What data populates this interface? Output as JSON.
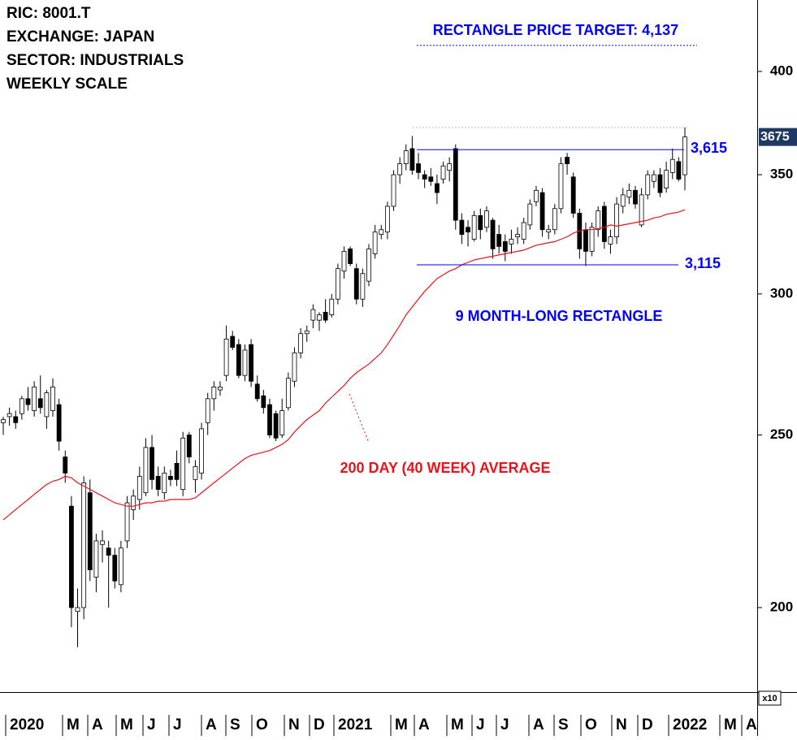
{
  "chart_data": {
    "type": "candlestick",
    "header": [
      "RIC: 8001.T",
      "EXCHANGE: JAPAN",
      "SECTOR: INDUSTRIALS",
      "WEEKLY SCALE"
    ],
    "log_scale": true,
    "ylim": [
      179.3,
      438.7
    ],
    "yticks": [
      200,
      250,
      300,
      350,
      400
    ],
    "ylabel": "x10",
    "xlabels": [
      "2020",
      "M",
      "A",
      "M",
      "J",
      "J",
      "A",
      "S",
      "O",
      "N",
      "D",
      "2021",
      "M",
      "A",
      "M",
      "J",
      "J",
      "A",
      "S",
      "O",
      "N",
      "D",
      "2022",
      "M",
      "A"
    ],
    "up_color": "#ffffff",
    "down_color": "#000000",
    "candles": [
      [
        254,
        256,
        250,
        255
      ],
      [
        256,
        259,
        253,
        257
      ],
      [
        256,
        258,
        252,
        254
      ],
      [
        257,
        263,
        255,
        262
      ],
      [
        262,
        266,
        258,
        260
      ],
      [
        258,
        268,
        256,
        266
      ],
      [
        262,
        270,
        257,
        259
      ],
      [
        256,
        265,
        252,
        264
      ],
      [
        258,
        269,
        256,
        266
      ],
      [
        260,
        262,
        245,
        248
      ],
      [
        243,
        245,
        235,
        238
      ],
      [
        228,
        231,
        195,
        200
      ],
      [
        199,
        205,
        190,
        200
      ],
      [
        200,
        237,
        197,
        235
      ],
      [
        232,
        236,
        207,
        210
      ],
      [
        208,
        220,
        204,
        218
      ],
      [
        217,
        221,
        212,
        218
      ],
      [
        216,
        218,
        200,
        214
      ],
      [
        214,
        216,
        205,
        207
      ],
      [
        206,
        218,
        204,
        216
      ],
      [
        218,
        231,
        216,
        229
      ],
      [
        227,
        233,
        224,
        231
      ],
      [
        230,
        240,
        227,
        237
      ],
      [
        232,
        249,
        231,
        246
      ],
      [
        246,
        250,
        233,
        236
      ],
      [
        237,
        240,
        231,
        233
      ],
      [
        232,
        240,
        230,
        238
      ],
      [
        237,
        239,
        234,
        236
      ],
      [
        241,
        245,
        234,
        236
      ],
      [
        233,
        251,
        231,
        249
      ],
      [
        250,
        251,
        241,
        243
      ],
      [
        236,
        242,
        232,
        240
      ],
      [
        238,
        254,
        236,
        252
      ],
      [
        254,
        264,
        250,
        262
      ],
      [
        262,
        268,
        258,
        266
      ],
      [
        265,
        268,
        263,
        266
      ],
      [
        270,
        288,
        268,
        283
      ],
      [
        284,
        286,
        279,
        280
      ],
      [
        281,
        283,
        269,
        270
      ],
      [
        270,
        281,
        268,
        279
      ],
      [
        281,
        283,
        266,
        268
      ],
      [
        267,
        270,
        261,
        262
      ],
      [
        263,
        265,
        257,
        259
      ],
      [
        260,
        262,
        249,
        250
      ],
      [
        257,
        258,
        248,
        249
      ],
      [
        250,
        262,
        249,
        258
      ],
      [
        259,
        271,
        258,
        269
      ],
      [
        268,
        280,
        266,
        278
      ],
      [
        278,
        287,
        276,
        285
      ],
      [
        285,
        288,
        282,
        286
      ],
      [
        290,
        296,
        287,
        294
      ],
      [
        290,
        293,
        286,
        292
      ],
      [
        293,
        298,
        289,
        290
      ],
      [
        292,
        300,
        291,
        298
      ],
      [
        298,
        312,
        296,
        310
      ],
      [
        309,
        319,
        306,
        317
      ],
      [
        318,
        319,
        311,
        312
      ],
      [
        310,
        312,
        296,
        298
      ],
      [
        298,
        310,
        295,
        308
      ],
      [
        305,
        320,
        303,
        318
      ],
      [
        316,
        328,
        314,
        325
      ],
      [
        324,
        328,
        322,
        326
      ],
      [
        325,
        338,
        322,
        336
      ],
      [
        336,
        352,
        334,
        350
      ],
      [
        350,
        358,
        346,
        355
      ],
      [
        355,
        364,
        352,
        361
      ],
      [
        362,
        368,
        350,
        352
      ],
      [
        355,
        360,
        348,
        351
      ],
      [
        350,
        352,
        344,
        348
      ],
      [
        349,
        353,
        345,
        347
      ],
      [
        346,
        350,
        337,
        342
      ],
      [
        348,
        356,
        346,
        354
      ],
      [
        352,
        358,
        347,
        355
      ],
      [
        362,
        364,
        326,
        330
      ],
      [
        330,
        333,
        320,
        324
      ],
      [
        327,
        330,
        319,
        325
      ],
      [
        322,
        334,
        321,
        332
      ],
      [
        332,
        335,
        322,
        326
      ],
      [
        327,
        336,
        325,
        334
      ],
      [
        330,
        331,
        314,
        318
      ],
      [
        324,
        328,
        316,
        319
      ],
      [
        321,
        324,
        313,
        317
      ],
      [
        320,
        326,
        316,
        322
      ],
      [
        323,
        327,
        320,
        324
      ],
      [
        322,
        331,
        320,
        329
      ],
      [
        328,
        339,
        326,
        337
      ],
      [
        338,
        345,
        336,
        343
      ],
      [
        342,
        344,
        323,
        326
      ],
      [
        325,
        328,
        322,
        326
      ],
      [
        326,
        337,
        324,
        335
      ],
      [
        335,
        358,
        333,
        355
      ],
      [
        358,
        360,
        350,
        355
      ],
      [
        349,
        351,
        331,
        333
      ],
      [
        333,
        335,
        314,
        318
      ],
      [
        326,
        329,
        311,
        317
      ],
      [
        317,
        329,
        315,
        327
      ],
      [
        326,
        336,
        323,
        334
      ],
      [
        336,
        338,
        318,
        321
      ],
      [
        320,
        326,
        316,
        323
      ],
      [
        323,
        340,
        320,
        337
      ],
      [
        336,
        344,
        333,
        341
      ],
      [
        340,
        346,
        337,
        343
      ],
      [
        343,
        345,
        335,
        337
      ],
      [
        328,
        344,
        327,
        341
      ],
      [
        341,
        352,
        339,
        350
      ],
      [
        347,
        352,
        344,
        350
      ],
      [
        350,
        353,
        340,
        342
      ],
      [
        344,
        356,
        342,
        352
      ],
      [
        351,
        362,
        348,
        357
      ],
      [
        356,
        358,
        347,
        348
      ],
      [
        350,
        372,
        343,
        367.5
      ]
    ],
    "moving_average": {
      "label": "200 DAY (40 WEEK) AVERAGE",
      "color": "#e8141b",
      "values": [
        224,
        225.5,
        227,
        228.5,
        230,
        231.5,
        233,
        234.5,
        235.5,
        236,
        237,
        236.5,
        235,
        234,
        233,
        232,
        231,
        230,
        229,
        228.5,
        228,
        228,
        228.5,
        229,
        229,
        229.5,
        229.5,
        230,
        230,
        230,
        230,
        230.5,
        232,
        233.5,
        235,
        236.5,
        238,
        239.5,
        241,
        242.5,
        243.5,
        244,
        244.5,
        245,
        246,
        247,
        248.5,
        251,
        253,
        255,
        256.5,
        258,
        260.5,
        262.5,
        264.5,
        266.5,
        269,
        271,
        272.5,
        274,
        276,
        278,
        281,
        284.5,
        288,
        292,
        295,
        298,
        301,
        303.5,
        306,
        307.5,
        309,
        310,
        311.5,
        312.5,
        313.5,
        314,
        314.5,
        315,
        315.5,
        316,
        316.5,
        317,
        317.5,
        318.5,
        319.5,
        320,
        320.5,
        321,
        322,
        323,
        324.5,
        325.5,
        326,
        326,
        326.5,
        327,
        328,
        327.5,
        328,
        328.5,
        329,
        329.5,
        330,
        331,
        331.5,
        332.5,
        333,
        333.5,
        334.5
      ]
    },
    "target": {
      "label": "RECTANGLE PRICE TARGET: 4,137",
      "value": 413.7,
      "color": "#0000ff"
    },
    "resistance": {
      "value": 361.5,
      "label": "3,615",
      "color": "#0000ff"
    },
    "support": {
      "value": 311.5,
      "label": "3,115",
      "color": "#0000ff"
    },
    "pattern_label": "9 MONTH-LONG RECTANGLE",
    "last_price": {
      "value": 367.5,
      "label": "3675"
    }
  }
}
